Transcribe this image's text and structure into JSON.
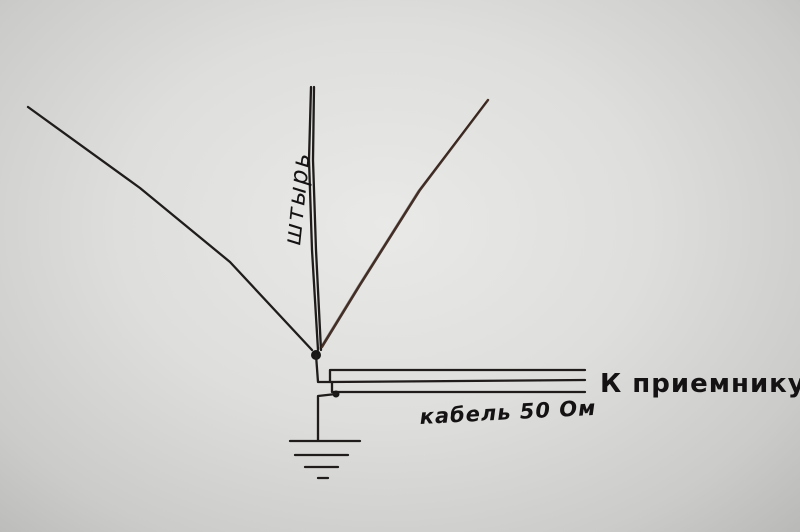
{
  "diagram": {
    "labels": {
      "rod": "штырь",
      "receiver": "К приемнику",
      "cable": "кабель 50 Ом"
    },
    "colors": {
      "paper": "#e3e3e1",
      "ink": "#1f1c1b",
      "copper_wire": "#4a3026"
    }
  }
}
